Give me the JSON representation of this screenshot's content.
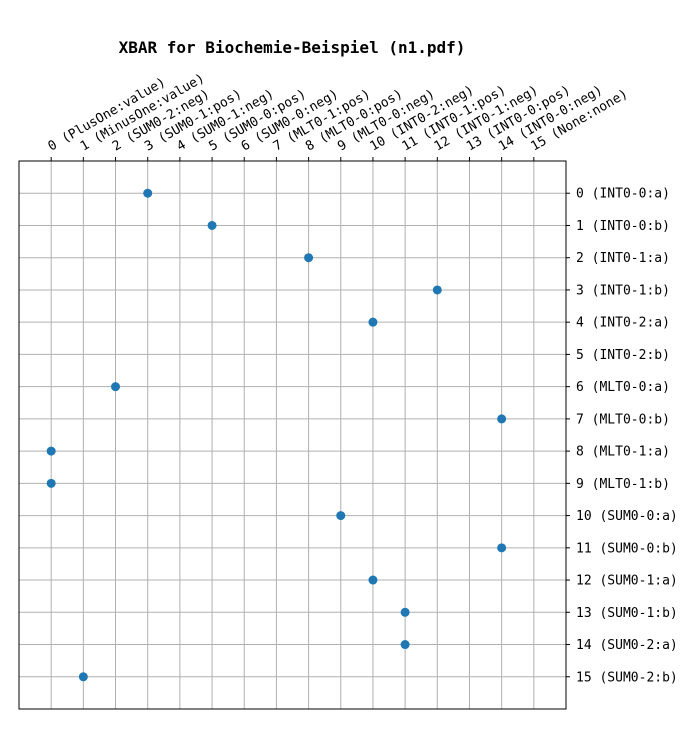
{
  "chart_data": {
    "type": "scatter",
    "title": "XBAR for Biochemie-Beispiel (n1.pdf)",
    "xlabel": "",
    "ylabel": "",
    "x_tick_labels": [
      "0 (PlusOne:value)",
      "1 (MinusOne:value)",
      "2 (SUM0-2:neg)",
      "3 (SUM0-1:pos)",
      "4 (SUM0-1:neg)",
      "5 (SUM0-0:pos)",
      "6 (SUM0-0:neg)",
      "7 (MLT0-1:pos)",
      "8 (MLT0-0:pos)",
      "9 (MLT0-0:neg)",
      "10 (INT0-2:neg)",
      "11 (INT0-1:pos)",
      "12 (INT0-1:neg)",
      "13 (INT0-0:pos)",
      "14 (INT0-0:neg)",
      "15 (None:none)"
    ],
    "y_tick_labels": [
      "0 (INT0-0:a)",
      "1 (INT0-0:b)",
      "2 (INT0-1:a)",
      "3 (INT0-1:b)",
      "4 (INT0-2:a)",
      "5 (INT0-2:b)",
      "6 (MLT0-0:a)",
      "7 (MLT0-0:b)",
      "8 (MLT0-1:a)",
      "9 (MLT0-1:b)",
      "10 (SUM0-0:a)",
      "11 (SUM0-0:b)",
      "12 (SUM0-1:a)",
      "13 (SUM0-1:b)",
      "14 (SUM0-2:a)",
      "15 (SUM0-2:b)"
    ],
    "xlim": [
      -1,
      16
    ],
    "ylim": [
      16,
      -1
    ],
    "x_axis_position": "top",
    "y_axis_position": "right",
    "grid": true,
    "y_inverted": true,
    "marker_color": "#1f77b4",
    "points": [
      {
        "x": 3,
        "y": 0
      },
      {
        "x": 5,
        "y": 1
      },
      {
        "x": 8,
        "y": 2
      },
      {
        "x": 12,
        "y": 3
      },
      {
        "x": 10,
        "y": 4
      },
      {
        "x": 2,
        "y": 6
      },
      {
        "x": 14,
        "y": 7
      },
      {
        "x": 0,
        "y": 8
      },
      {
        "x": 0,
        "y": 9
      },
      {
        "x": 9,
        "y": 10
      },
      {
        "x": 14,
        "y": 11
      },
      {
        "x": 10,
        "y": 12
      },
      {
        "x": 11,
        "y": 13
      },
      {
        "x": 11,
        "y": 14
      },
      {
        "x": 1,
        "y": 15
      }
    ]
  }
}
